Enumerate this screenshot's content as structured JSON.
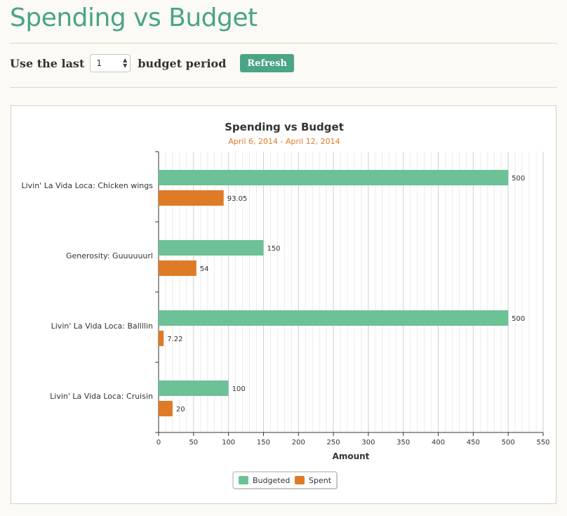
{
  "page": {
    "title": "Spending vs Budget"
  },
  "controls": {
    "prefix_label": "Use the last",
    "period_value": "1",
    "suffix_label": "budget period",
    "refresh_label": "Refresh"
  },
  "colors": {
    "brand": "#4aa487",
    "budgeted": "#6cc197",
    "spent": "#df7a26"
  },
  "chart_data": {
    "type": "bar",
    "orientation": "horizontal",
    "title": "Spending vs Budget",
    "subtitle": "April 6, 2014 - April 12, 2014",
    "xlabel": "Amount",
    "ylabel": "",
    "xlim": [
      0,
      550
    ],
    "x_ticks": [
      0,
      50,
      100,
      150,
      200,
      250,
      300,
      350,
      400,
      450,
      500,
      550
    ],
    "grid": true,
    "legend": "bottom-center",
    "categories": [
      "Livin' La Vida Loca: Chicken wings",
      "Generosity: Guuuuuurl",
      "Livin' La Vida Loca: Ballllin",
      "Livin' La Vida Loca: Cruisin"
    ],
    "series": [
      {
        "name": "Budgeted",
        "values": [
          500,
          150,
          500,
          100
        ],
        "labels": [
          "500",
          "150",
          "500",
          "100"
        ]
      },
      {
        "name": "Spent",
        "values": [
          93.05,
          54,
          7.22,
          20
        ],
        "labels": [
          "93.05",
          "54",
          "7.22",
          "20"
        ]
      }
    ]
  }
}
